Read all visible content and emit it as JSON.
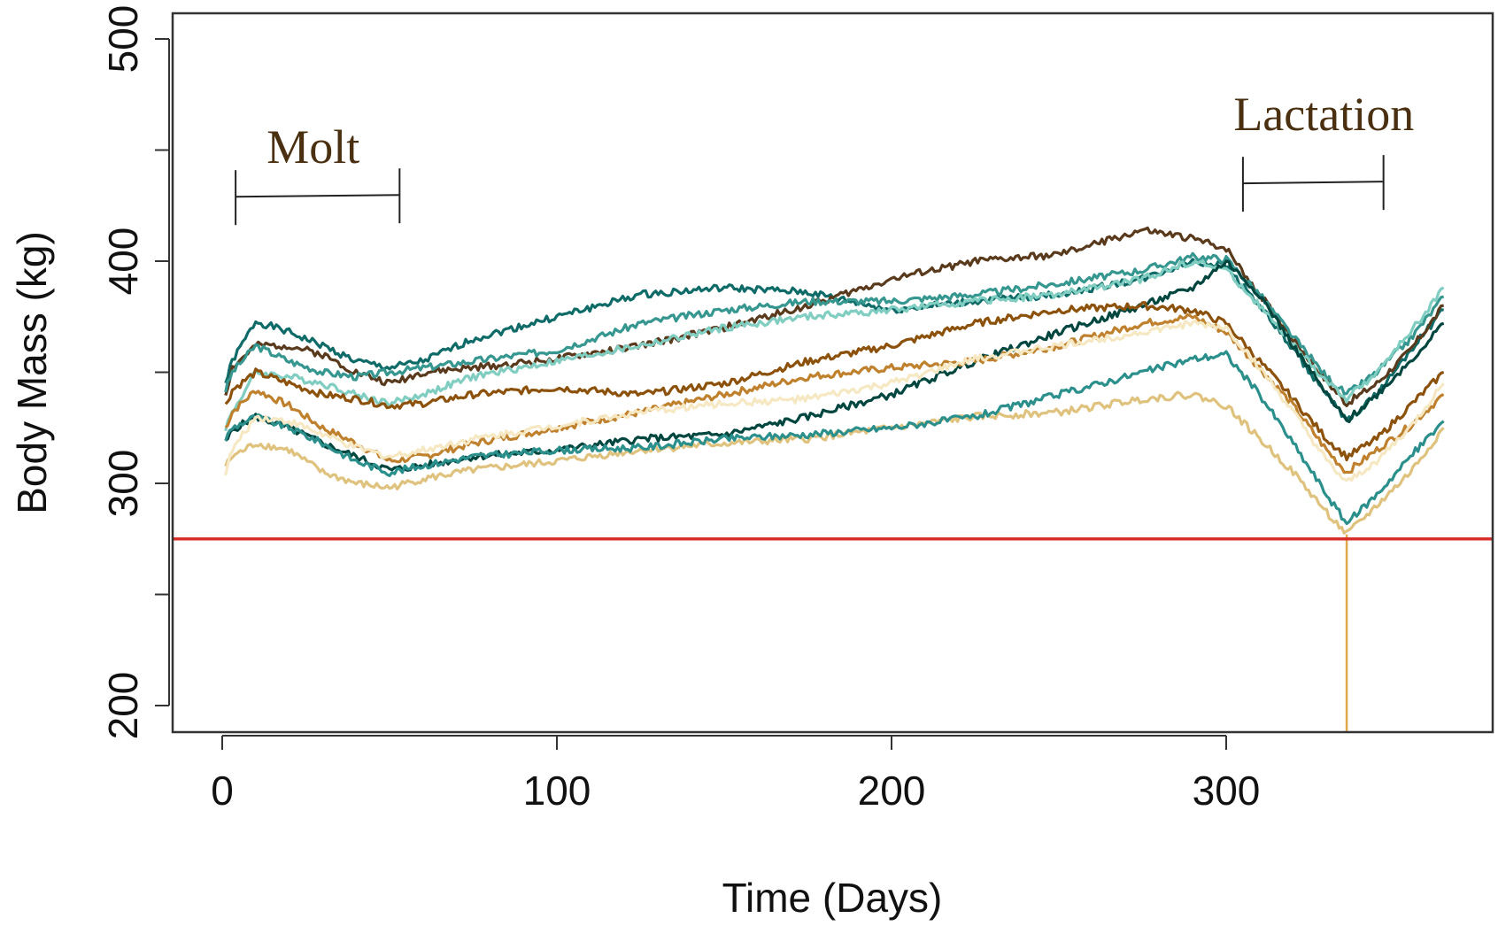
{
  "chart_data": {
    "type": "line",
    "title": "",
    "xlabel": "Time (Days)",
    "ylabel": "Body Mass (kg)",
    "xlim": [
      -15,
      380
    ],
    "ylim": [
      188,
      515
    ],
    "xticks": [
      0,
      100,
      200,
      300
    ],
    "yticks": [
      200,
      300,
      400,
      500
    ],
    "grid": false,
    "legend": "none",
    "annotations": [
      {
        "text": "Molt",
        "x_start": 4,
        "x_end": 53,
        "y": 429
      },
      {
        "text": "Lactation",
        "x_start": 305,
        "x_end": 347,
        "y": 435
      }
    ],
    "threshold_line": {
      "y": 275,
      "color": "#d7302a"
    },
    "series_template_x": [
      1,
      3,
      10,
      20,
      30,
      40,
      50,
      60,
      75,
      100,
      125,
      150,
      175,
      200,
      225,
      250,
      275,
      290,
      300,
      310,
      320,
      330,
      336,
      345,
      355,
      365
    ],
    "series": [
      {
        "color": "#0e6b68",
        "values": [
          345,
          355,
          373,
          368,
          362,
          355,
          352,
          355,
          365,
          375,
          385,
          388,
          386,
          378,
          382,
          385,
          392,
          400,
          398,
          380,
          360,
          340,
          328,
          340,
          360,
          378
        ]
      },
      {
        "color": "#5a3a1c",
        "values": [
          340,
          352,
          362,
          362,
          358,
          350,
          345,
          350,
          352,
          356,
          362,
          370,
          380,
          392,
          400,
          403,
          414,
          410,
          406,
          385,
          365,
          346,
          336,
          345,
          360,
          380
        ]
      },
      {
        "color": "#35978f",
        "values": [
          342,
          350,
          362,
          355,
          350,
          348,
          350,
          352,
          355,
          360,
          372,
          378,
          382,
          382,
          385,
          390,
          396,
          402,
          401,
          385,
          366,
          348,
          340,
          350,
          365,
          384
        ]
      },
      {
        "color": "#80cdc1",
        "values": [
          325,
          332,
          350,
          348,
          345,
          340,
          336,
          340,
          348,
          355,
          362,
          370,
          375,
          378,
          382,
          385,
          392,
          400,
          396,
          380,
          362,
          346,
          338,
          350,
          368,
          388
        ]
      },
      {
        "color": "#01463f",
        "values": [
          318,
          324,
          330,
          325,
          318,
          312,
          306,
          308,
          312,
          315,
          320,
          322,
          330,
          340,
          355,
          368,
          380,
          388,
          400,
          385,
          362,
          340,
          328,
          340,
          355,
          372
        ]
      },
      {
        "color": "#8c510a",
        "values": [
          335,
          342,
          350,
          345,
          340,
          338,
          335,
          336,
          340,
          343,
          340,
          345,
          355,
          362,
          372,
          378,
          380,
          378,
          372,
          355,
          338,
          320,
          312,
          320,
          335,
          350
        ]
      },
      {
        "color": "#bf812d",
        "values": [
          325,
          332,
          342,
          335,
          325,
          318,
          310,
          312,
          318,
          325,
          332,
          340,
          348,
          352,
          355,
          362,
          372,
          375,
          368,
          352,
          335,
          315,
          305,
          315,
          326,
          340
        ]
      },
      {
        "color": "#dfc27d",
        "values": [
          308,
          312,
          318,
          315,
          305,
          300,
          298,
          302,
          306,
          310,
          315,
          318,
          320,
          325,
          330,
          332,
          338,
          340,
          335,
          320,
          305,
          287,
          277,
          290,
          305,
          325
        ]
      },
      {
        "color": "#2b8f8c",
        "values": [
          320,
          325,
          330,
          325,
          318,
          310,
          305,
          308,
          312,
          315,
          316,
          320,
          322,
          325,
          330,
          340,
          350,
          356,
          358,
          340,
          318,
          295,
          282,
          295,
          312,
          328
        ]
      },
      {
        "color": "#f6e8c3",
        "values": [
          305,
          315,
          330,
          328,
          322,
          316,
          312,
          315,
          320,
          326,
          332,
          336,
          338,
          345,
          356,
          362,
          368,
          372,
          370,
          352,
          332,
          310,
          300,
          310,
          325,
          345
        ]
      }
    ],
    "descent_line": {
      "x": 336,
      "y_from": 277,
      "color": "#e0a84a"
    }
  }
}
